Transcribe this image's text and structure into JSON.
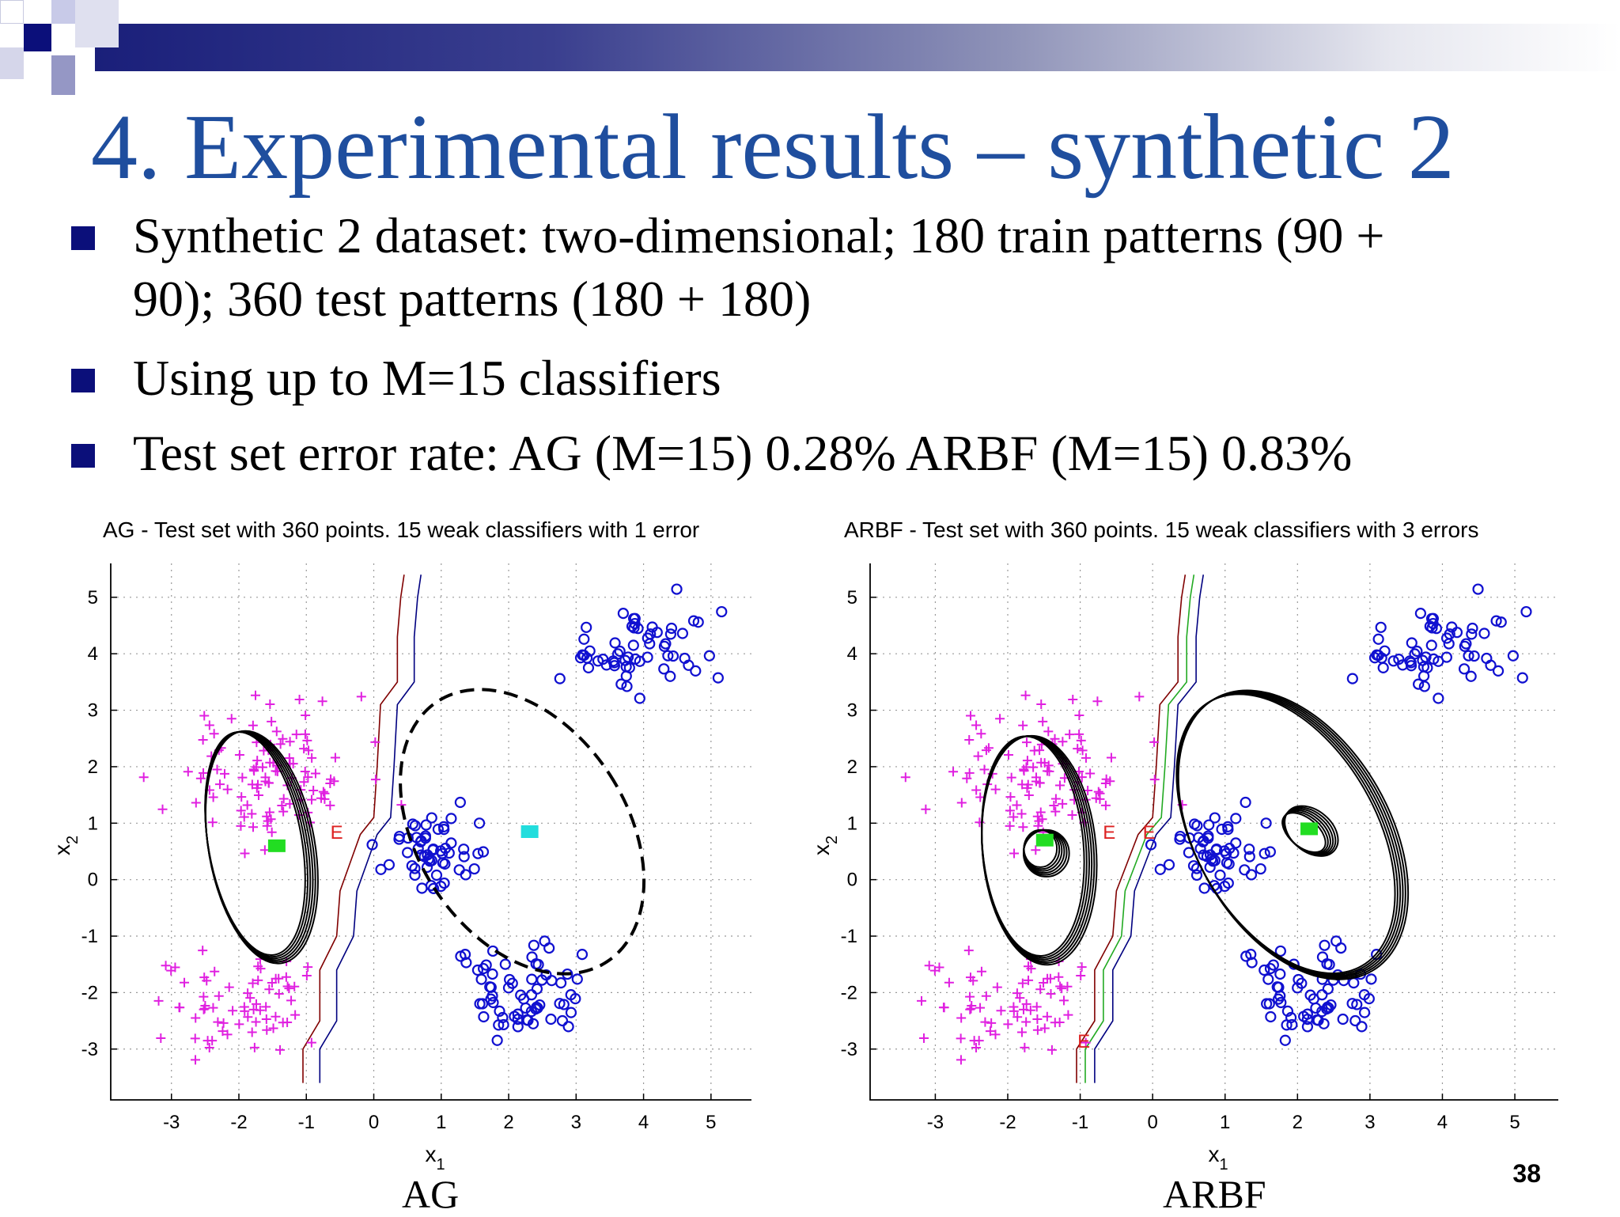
{
  "slide": {
    "title": "4. Experimental results – synthetic 2",
    "bullets": [
      {
        "line1": "Synthetic 2 dataset: two-dimensional; 180 train patterns (90 +",
        "line2": "90); 360 test patterns (180 + 180)"
      },
      {
        "line1": "Using up to M=15 classifiers",
        "line2": ""
      },
      {
        "line1": "Test set error rate:  AG (M=15)  0.28%     ARBF (M=15)  0.83%",
        "line2": ""
      }
    ],
    "page_number": "38",
    "colors": {
      "title": "#1f4e9e",
      "bullet": "#0b0f7a",
      "class_plus": "#e020e0",
      "class_circle": "#1010d0"
    }
  },
  "chart_data": [
    {
      "type": "scatter",
      "title": "AG - Test set with 360 points. 15 weak classifiers with 1 error",
      "caption": "AG",
      "xlabel": "x",
      "xlabel_sub": "1",
      "ylabel": "x",
      "ylabel_sub": "2",
      "xlim": [
        -3.9,
        5.6
      ],
      "ylim": [
        -3.9,
        5.6
      ],
      "xticks": [
        -3,
        -2,
        -1,
        0,
        1,
        2,
        3,
        4,
        5
      ],
      "yticks": [
        -3,
        -2,
        -1,
        0,
        1,
        2,
        3,
        4,
        5
      ],
      "grid": true,
      "series": [
        {
          "marker": "+",
          "color": "#e020e0",
          "clusters": [
            {
              "cx": -1.5,
              "cy": 1.9,
              "sx": 0.7,
              "sy": 0.6,
              "n": 110
            },
            {
              "cx": -1.9,
              "cy": -2.1,
              "sx": 0.6,
              "sy": 0.45,
              "n": 70
            }
          ]
        },
        {
          "marker": "o",
          "color": "#1010d0",
          "clusters": [
            {
              "cx": 0.9,
              "cy": 0.5,
              "sx": 0.35,
              "sy": 0.4,
              "n": 55
            },
            {
              "cx": 4.0,
              "cy": 4.1,
              "sx": 0.55,
              "sy": 0.35,
              "n": 60
            },
            {
              "cx": 2.2,
              "cy": -2.1,
              "sx": 0.45,
              "sy": 0.45,
              "n": 65
            }
          ]
        }
      ],
      "error_markers": [
        {
          "x": -0.55,
          "y": 0.85,
          "label": "E"
        }
      ],
      "ellipses": [
        {
          "cx": -1.7,
          "cy": 0.6,
          "rx": 0.75,
          "ry": 2.05,
          "rotate": 10,
          "style": "solid-thick"
        },
        {
          "cx": 2.2,
          "cy": 0.85,
          "rx": 1.55,
          "ry": 2.75,
          "rotate": 33,
          "style": "dashed"
        }
      ],
      "centers": [
        {
          "x": -1.45,
          "y": 0.6,
          "color": "#22dd22"
        },
        {
          "x": 2.3,
          "y": 0.85,
          "color": "#22dddd"
        }
      ],
      "boundary_lines": [
        {
          "color": "#800000",
          "offset": 0
        },
        {
          "color": "#000080",
          "offset": 0.25
        }
      ]
    },
    {
      "type": "scatter",
      "title": "ARBF - Test set with 360 points. 15 weak classifiers with 3 errors",
      "caption": "ARBF",
      "xlabel": "x",
      "xlabel_sub": "1",
      "ylabel": "x",
      "ylabel_sub": "2",
      "xlim": [
        -3.9,
        5.6
      ],
      "ylim": [
        -3.9,
        5.6
      ],
      "xticks": [
        -3,
        -2,
        -1,
        0,
        1,
        2,
        3,
        4,
        5
      ],
      "yticks": [
        -3,
        -2,
        -1,
        0,
        1,
        2,
        3,
        4,
        5
      ],
      "grid": true,
      "series": [
        {
          "marker": "+",
          "color": "#e020e0",
          "clusters": [
            {
              "cx": -1.5,
              "cy": 1.9,
              "sx": 0.7,
              "sy": 0.6,
              "n": 110
            },
            {
              "cx": -1.9,
              "cy": -2.1,
              "sx": 0.6,
              "sy": 0.45,
              "n": 70
            }
          ]
        },
        {
          "marker": "o",
          "color": "#1010d0",
          "clusters": [
            {
              "cx": 0.9,
              "cy": 0.5,
              "sx": 0.35,
              "sy": 0.4,
              "n": 55
            },
            {
              "cx": 4.0,
              "cy": 4.1,
              "sx": 0.55,
              "sy": 0.35,
              "n": 60
            },
            {
              "cx": 2.2,
              "cy": -2.1,
              "sx": 0.45,
              "sy": 0.45,
              "n": 65
            }
          ]
        }
      ],
      "error_markers": [
        {
          "x": -0.6,
          "y": 0.85,
          "label": "E"
        },
        {
          "x": -0.05,
          "y": 0.85,
          "label": "E"
        },
        {
          "x": -0.95,
          "y": -2.85,
          "label": "E"
        }
      ],
      "ellipses": [
        {
          "cx": -1.6,
          "cy": 0.55,
          "rx": 0.75,
          "ry": 2.0,
          "rotate": 5,
          "style": "solid-thick"
        },
        {
          "cx": 1.9,
          "cy": 0.8,
          "rx": 1.3,
          "ry": 2.75,
          "rotate": 30,
          "style": "solid-thick"
        },
        {
          "cx": -1.5,
          "cy": 0.5,
          "rx": 0.28,
          "ry": 0.38,
          "rotate": 0,
          "style": "solid-thick"
        },
        {
          "cx": 2.15,
          "cy": 0.85,
          "rx": 0.25,
          "ry": 0.5,
          "rotate": 50,
          "style": "solid-thick"
        }
      ],
      "centers": [
        {
          "x": -1.5,
          "y": 0.7,
          "color": "#22dd22"
        },
        {
          "x": 2.15,
          "y": 0.9,
          "color": "#22dd22"
        }
      ],
      "boundary_lines": [
        {
          "color": "#800000",
          "offset": 0
        },
        {
          "color": "#22aa22",
          "offset": 0.12
        },
        {
          "color": "#000080",
          "offset": 0.25
        }
      ]
    }
  ]
}
